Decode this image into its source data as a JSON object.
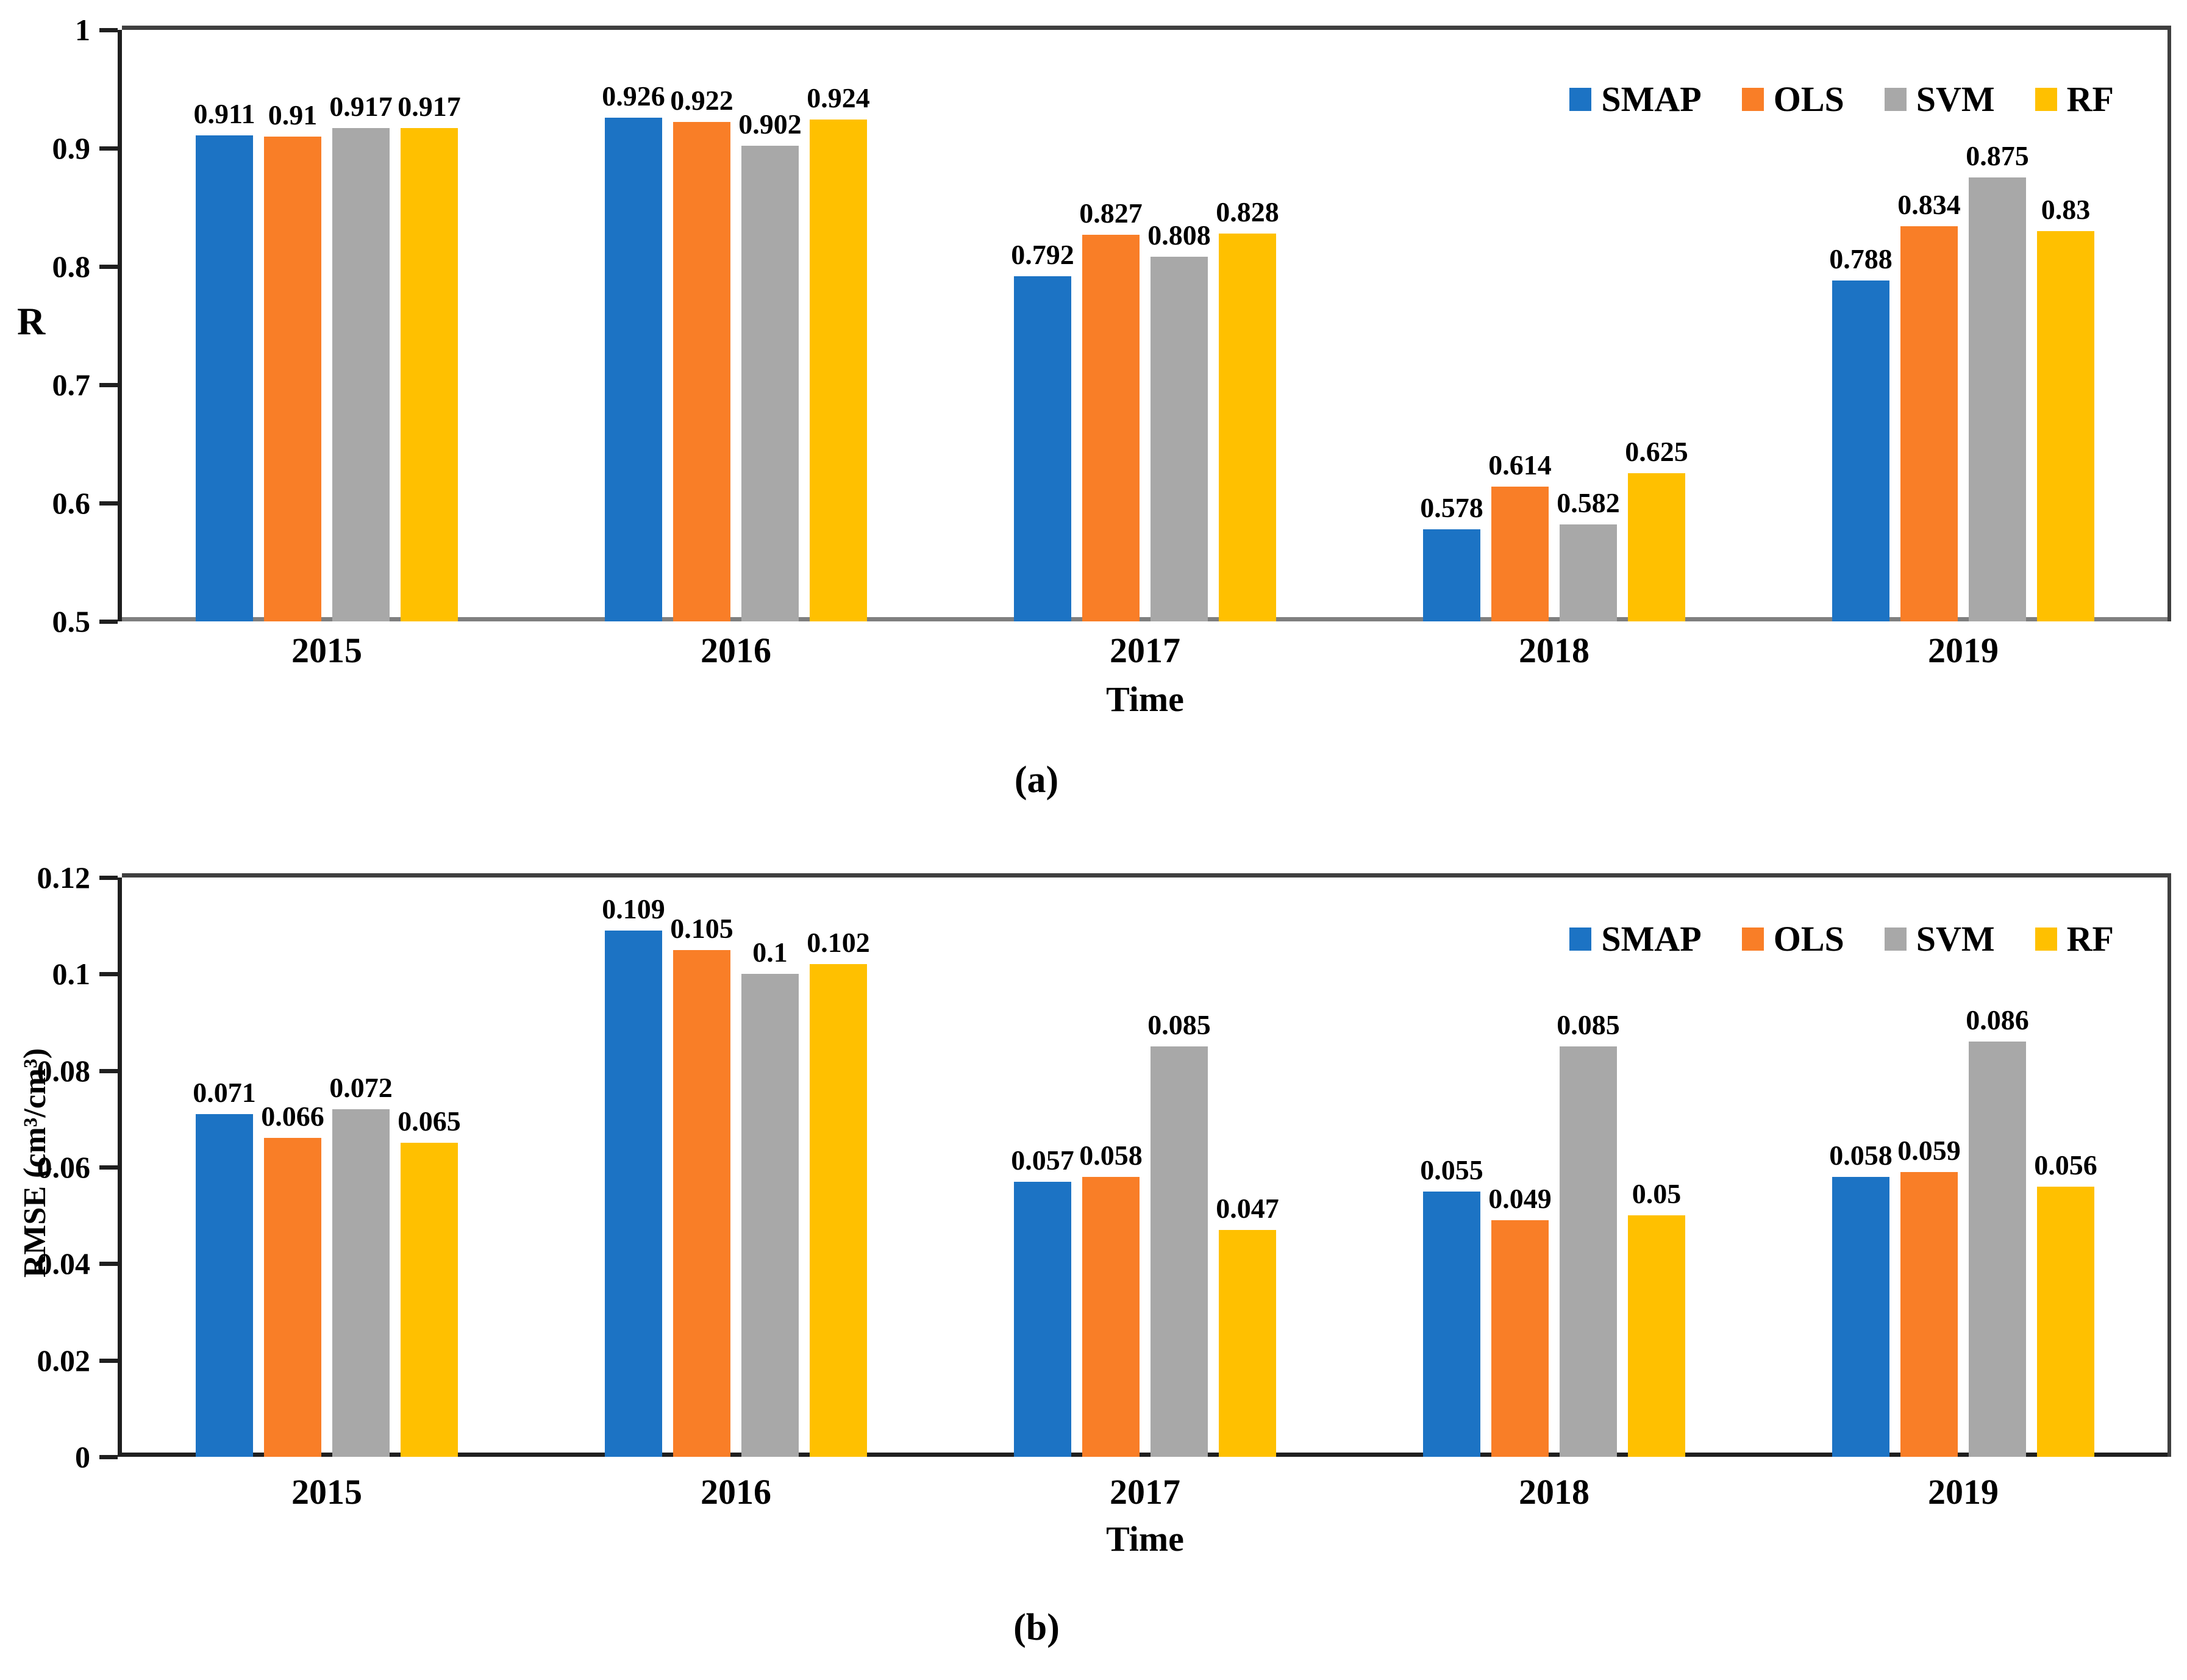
{
  "figure": {
    "caption_a": "(a)",
    "caption_b": "(b)"
  },
  "colors": {
    "smap": "#1C73C4",
    "ols": "#F97E27",
    "svm": "#A8A8A8",
    "rf": "#FFC000",
    "axis_dark": "#1F1F1F",
    "plot_border": "#3F3F3F",
    "baseline_a": "#7F7F7F",
    "baseline_b": "#1F1F1F",
    "text": "#000000"
  },
  "chart_data": [
    {
      "type": "bar",
      "panel": "a",
      "caption": "(a)",
      "title": "",
      "ylabel": "R",
      "xlabel": "Time",
      "ymin": 0.5,
      "ymax": 1,
      "yticks": [
        1,
        0.9,
        0.8,
        0.7,
        0.6,
        0.5
      ],
      "grid": false,
      "legend_position": "top-right-inside",
      "categories": [
        "2015",
        "2016",
        "2017",
        "2018",
        "2019"
      ],
      "series": [
        {
          "name": "SMAP",
          "color_key": "smap",
          "values": [
            0.911,
            0.926,
            0.792,
            0.578,
            0.788
          ]
        },
        {
          "name": "OLS",
          "color_key": "ols",
          "values": [
            0.91,
            0.922,
            0.827,
            0.614,
            0.834
          ]
        },
        {
          "name": "SVM",
          "color_key": "svm",
          "values": [
            0.917,
            0.902,
            0.808,
            0.582,
            0.875
          ]
        },
        {
          "name": "RF",
          "color_key": "rf",
          "values": [
            0.917,
            0.924,
            0.828,
            0.625,
            0.83
          ]
        }
      ]
    },
    {
      "type": "bar",
      "panel": "b",
      "caption": "(b)",
      "title": "",
      "ylabel": "RMSE (cm³/cm³)",
      "xlabel": "Time",
      "ymin": 0,
      "ymax": 0.12,
      "yticks": [
        0.12,
        0.1,
        0.08,
        0.06,
        0.04,
        0.02,
        0
      ],
      "grid": false,
      "legend_position": "top-right-inside",
      "categories": [
        "2015",
        "2016",
        "2017",
        "2018",
        "2019"
      ],
      "series": [
        {
          "name": "SMAP",
          "color_key": "smap",
          "values": [
            0.071,
            0.109,
            0.057,
            0.055,
            0.058
          ]
        },
        {
          "name": "OLS",
          "color_key": "ols",
          "values": [
            0.066,
            0.105,
            0.058,
            0.049,
            0.059
          ]
        },
        {
          "name": "SVM",
          "color_key": "svm",
          "values": [
            0.072,
            0.1,
            0.085,
            0.085,
            0.086
          ]
        },
        {
          "name": "RF",
          "color_key": "rf",
          "values": [
            0.065,
            0.102,
            0.047,
            0.05,
            0.056
          ]
        }
      ]
    }
  ]
}
